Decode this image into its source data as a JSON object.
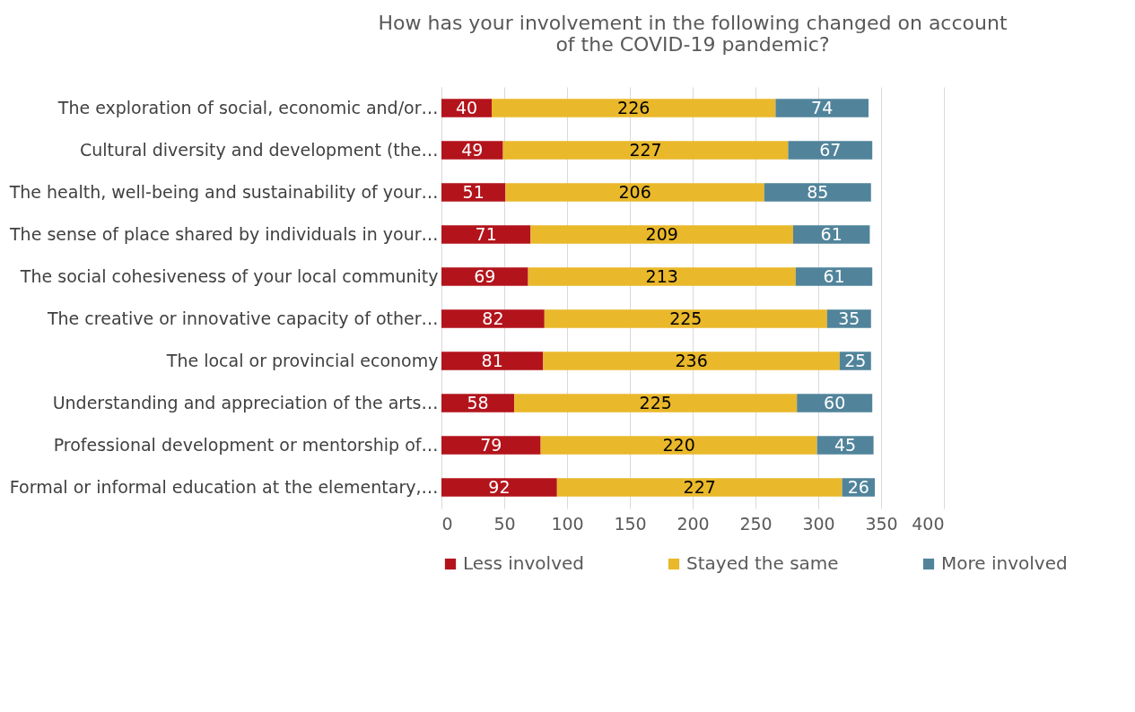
{
  "chart_data": {
    "type": "bar",
    "orientation": "horizontal",
    "stacked": true,
    "title": "How has your involvement in the following changed on account of the COVID-19 pandemic?",
    "categories": [
      "The exploration of social, economic and/or…",
      "Cultural diversity and development (the…",
      "The health, well-being and sustainability of your…",
      "The sense of place shared by individuals in your…",
      "The social cohesiveness of your local community",
      "The creative or innovative capacity of other…",
      "The local or provincial economy",
      "Understanding and appreciation of the arts…",
      "Professional development or mentorship of…",
      "Formal or informal education at the elementary,…"
    ],
    "series": [
      {
        "name": "Less involved",
        "color": "#b3141c",
        "values": [
          40,
          49,
          51,
          71,
          69,
          82,
          81,
          58,
          79,
          92
        ]
      },
      {
        "name": "Stayed the same",
        "color": "#e9b82b",
        "values": [
          226,
          227,
          206,
          209,
          213,
          225,
          236,
          225,
          220,
          227
        ]
      },
      {
        "name": "More involved",
        "color": "#51849b",
        "values": [
          74,
          67,
          85,
          61,
          61,
          35,
          25,
          60,
          45,
          26
        ]
      }
    ],
    "xlim": [
      0,
      400
    ],
    "xticks": [
      0,
      50,
      100,
      150,
      200,
      250,
      300,
      350,
      400
    ],
    "grid": "x",
    "legend": "bottom",
    "data_labels": true
  }
}
